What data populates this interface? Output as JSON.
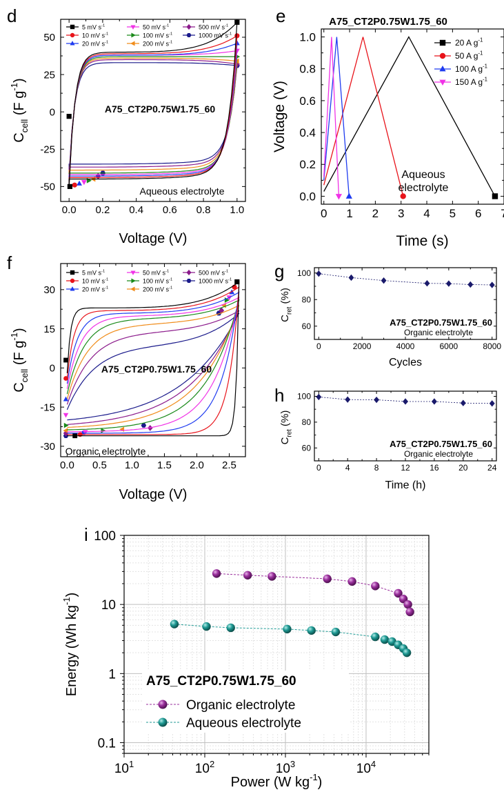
{
  "chart_data": [
    {
      "panel": "d",
      "type": "line",
      "subtype": "cyclic voltammetry",
      "title": "A75_CT2P0.75W1.75_60",
      "annotation": "Aqueous electrolyte",
      "xlabel": "Voltage (V)",
      "ylabel": "C_cell (F g^-1)",
      "xlim": [
        -0.05,
        1.05
      ],
      "ylim": [
        -60,
        62
      ],
      "xticks": [
        0.0,
        0.2,
        0.4,
        0.6,
        0.8,
        1.0
      ],
      "xtick_labels": [
        "0.0",
        "0.2",
        "0.4",
        "0.6",
        "0.8",
        "1.0"
      ],
      "yticks": [
        -50,
        -25,
        0,
        25,
        50
      ],
      "ytick_labels": [
        "-50",
        "-25",
        "0",
        "25",
        "50"
      ],
      "legend_position": "top, 3 columns",
      "series": [
        {
          "name": "5 mV s-1",
          "color": "#000000",
          "marker": "square",
          "upper_plateau": 40,
          "lower_plateau": -45,
          "end_max": 60,
          "start_min": -50
        },
        {
          "name": "10 mV s-1",
          "color": "#e8131a",
          "marker": "circle",
          "upper_plateau": 39,
          "lower_plateau": -44,
          "end_max": 51,
          "start_min": -49
        },
        {
          "name": "20 mV s-1",
          "color": "#1e3bf0",
          "marker": "triangle-up",
          "upper_plateau": 38,
          "lower_plateau": -43,
          "end_max": 46,
          "start_min": -48
        },
        {
          "name": "50 mV s-1",
          "color": "#f032e6",
          "marker": "triangle-down",
          "upper_plateau": 38,
          "lower_plateau": -42,
          "end_max": 41,
          "start_min": -47
        },
        {
          "name": "100 mV s-1",
          "color": "#1a8a1a",
          "marker": "triangle-right",
          "upper_plateau": 37,
          "lower_plateau": -41,
          "end_max": 37,
          "start_min": -46
        },
        {
          "name": "200 mV s-1",
          "color": "#f08c1a",
          "marker": "triangle-left",
          "upper_plateau": 36,
          "lower_plateau": -39,
          "end_max": 34,
          "start_min": -45
        },
        {
          "name": "500 mV s-1",
          "color": "#8b1a8b",
          "marker": "diamond",
          "upper_plateau": 35,
          "lower_plateau": -37,
          "end_max": 32,
          "start_min": -43
        },
        {
          "name": "1000 mV s-1",
          "color": "#1a1a8b",
          "marker": "hexagon",
          "upper_plateau": 33,
          "lower_plateau": -35,
          "end_max": 31,
          "start_min": -41
        }
      ]
    },
    {
      "panel": "e",
      "type": "line",
      "subtype": "galvanostatic charge-discharge",
      "title": "A75_CT2P0.75W1.75_60",
      "annotation": "Aqueous electrolyte",
      "xlabel": "Time (s)",
      "ylabel": "Voltage (V)",
      "xlim": [
        -0.1,
        7.0
      ],
      "ylim": [
        -0.05,
        1.05
      ],
      "xticks": [
        0,
        1,
        2,
        3,
        4,
        5,
        6,
        7
      ],
      "xtick_labels": [
        "0",
        "1",
        "2",
        "3",
        "4",
        "5",
        "6",
        "7"
      ],
      "yticks": [
        0.0,
        0.2,
        0.4,
        0.6,
        0.8,
        1.0
      ],
      "ytick_labels": [
        "0.0",
        "0.2",
        "0.4",
        "0.6",
        "0.8",
        "1.0"
      ],
      "legend_position": "top-right",
      "series": [
        {
          "name": "20 A g-1",
          "color": "#000000",
          "marker": "square",
          "points": [
            [
              0,
              0.03
            ],
            [
              3.3,
              1.0
            ],
            [
              6.65,
              0.0
            ]
          ]
        },
        {
          "name": "50 A g-1",
          "color": "#e8131a",
          "marker": "circle",
          "points": [
            [
              0,
              0.07
            ],
            [
              1.52,
              1.0
            ],
            [
              3.08,
              0.0
            ]
          ]
        },
        {
          "name": "100 A g-1",
          "color": "#1e3bf0",
          "marker": "triangle-up",
          "points": [
            [
              0,
              0.1
            ],
            [
              0.5,
              1.0
            ],
            [
              0.98,
              0.0
            ]
          ]
        },
        {
          "name": "150 A g-1",
          "color": "#f032e6",
          "marker": "triangle-down",
          "points": [
            [
              0,
              0.12
            ],
            [
              0.3,
              1.0
            ],
            [
              0.58,
              0.0
            ]
          ]
        }
      ]
    },
    {
      "panel": "f",
      "type": "line",
      "subtype": "cyclic voltammetry",
      "title": "A75_CT2P0.75W1.75_60",
      "annotation": "Organic electrolyte",
      "xlabel": "Voltage (V)",
      "ylabel": "C_cell (F g^-1)",
      "xlim": [
        -0.1,
        2.75
      ],
      "ylim": [
        -34,
        40
      ],
      "xticks": [
        0.0,
        0.5,
        1.0,
        1.5,
        2.0,
        2.5
      ],
      "xtick_labels": [
        "0.0",
        "0.5",
        "1.0",
        "1.5",
        "2.0",
        "2.5"
      ],
      "yticks": [
        -30,
        -15,
        0,
        15,
        30
      ],
      "ytick_labels": [
        "-30",
        "-15",
        "0",
        "15",
        "30"
      ],
      "legend_position": "top, 3 columns",
      "series": [
        {
          "name": "5 mV s-1",
          "color": "#000000",
          "marker": "square",
          "upper_plateau": 23,
          "lower_plateau": -26,
          "end_max": 33
        },
        {
          "name": "10 mV s-1",
          "color": "#e8131a",
          "marker": "circle",
          "upper_plateau": 22,
          "lower_plateau": -25.5,
          "end_max": 31
        },
        {
          "name": "20 mV s-1",
          "color": "#1e3bf0",
          "marker": "triangle-up",
          "upper_plateau": 21,
          "lower_plateau": -25,
          "end_max": 29
        },
        {
          "name": "50 mV s-1",
          "color": "#f032e6",
          "marker": "triangle-down",
          "upper_plateau": 20,
          "lower_plateau": -24.5,
          "end_max": 27
        },
        {
          "name": "100 mV s-1",
          "color": "#1a8a1a",
          "marker": "triangle-right",
          "upper_plateau": 19,
          "lower_plateau": -24,
          "end_max": 26
        },
        {
          "name": "200 mV s-1",
          "color": "#f08c1a",
          "marker": "triangle-left",
          "upper_plateau": 17,
          "lower_plateau": -23.5,
          "end_max": 24
        },
        {
          "name": "500 mV s-1",
          "color": "#8b1a8b",
          "marker": "diamond",
          "upper_plateau": 14,
          "lower_plateau": -23,
          "end_max": 22
        },
        {
          "name": "1000 mV s-1",
          "color": "#1a1a8b",
          "marker": "hexagon",
          "upper_plateau": 9,
          "lower_plateau": -22,
          "end_max": 21
        }
      ]
    },
    {
      "panel": "g",
      "type": "scatter",
      "title": "A75_CT2P0.75W1.75_60",
      "annotation": "Organic electrolyte",
      "xlabel": "Cycles",
      "ylabel": "C_ret (%)",
      "xlim": [
        -200,
        8200
      ],
      "ylim": [
        50,
        104
      ],
      "xticks": [
        0,
        2000,
        4000,
        6000,
        8000
      ],
      "xtick_labels": [
        "0",
        "2000",
        "4000",
        "6000",
        "8000"
      ],
      "yticks": [
        60,
        80,
        100
      ],
      "ytick_labels": [
        "60",
        "80",
        "100"
      ],
      "series": [
        {
          "name": "",
          "color": "#1a1a6b",
          "marker": "diamond",
          "x": [
            0,
            1500,
            3000,
            5000,
            6000,
            7000,
            8000
          ],
          "y": [
            99.5,
            96.5,
            94.3,
            92.2,
            92.0,
            91.3,
            91.0
          ]
        }
      ]
    },
    {
      "panel": "h",
      "type": "scatter",
      "title": "A75_CT2P0.75W1.75_60",
      "annotation": "Organic electrolyte",
      "xlabel": "Time (h)",
      "ylabel": "C_ret (%)",
      "xlim": [
        -0.6,
        24.6
      ],
      "ylim": [
        50,
        104
      ],
      "xticks": [
        0,
        4,
        8,
        12,
        16,
        20,
        24
      ],
      "xtick_labels": [
        "0",
        "4",
        "8",
        "12",
        "16",
        "20",
        "24"
      ],
      "yticks": [
        60,
        80,
        100
      ],
      "ytick_labels": [
        "60",
        "80",
        "100"
      ],
      "series": [
        {
          "name": "",
          "color": "#1a1a6b",
          "marker": "diamond",
          "x": [
            0,
            4,
            8,
            12,
            16,
            20,
            24
          ],
          "y": [
            99.5,
            97.5,
            97.3,
            96.0,
            96.0,
            94.8,
            94.5
          ]
        }
      ]
    },
    {
      "panel": "i",
      "type": "scatter",
      "subtype": "Ragone plot (log-log)",
      "title": "A75_CT2P0.75W1.75_60",
      "xlabel": "Power (W kg^-1)",
      "ylabel": "Energy (Wh kg^-1)",
      "xscale": "log",
      "yscale": "log",
      "xlim": [
        10,
        60000
      ],
      "ylim": [
        0.07,
        100
      ],
      "xticks": [
        10,
        100,
        1000,
        10000
      ],
      "xtick_labels": [
        "10^1",
        "10^2",
        "10^3",
        "10^4"
      ],
      "yticks": [
        0.1,
        1,
        10,
        100
      ],
      "ytick_labels": [
        "0.1",
        "1",
        "10",
        "100"
      ],
      "grid": true,
      "legend_position": "bottom-left",
      "series": [
        {
          "name": "Organic electrolyte",
          "color": "#9a2f9c",
          "marker": "sphere",
          "x": [
            140,
            340,
            680,
            3300,
            6700,
            13000,
            25000,
            29000,
            33000,
            35000
          ],
          "y": [
            28,
            26.5,
            25.5,
            23.5,
            21.5,
            18.5,
            14.5,
            12,
            10,
            7.8
          ]
        },
        {
          "name": "Aqueous electrolyte",
          "color": "#1f9a94",
          "marker": "sphere",
          "x": [
            42,
            105,
            210,
            1050,
            2100,
            4200,
            13000,
            17000,
            21000,
            25000,
            29000,
            32000
          ],
          "y": [
            5.2,
            4.8,
            4.6,
            4.4,
            4.2,
            4.0,
            3.4,
            3.1,
            2.9,
            2.6,
            2.3,
            2.0
          ]
        }
      ]
    }
  ],
  "panel_letters": [
    "d",
    "e",
    "f",
    "g",
    "h",
    "i"
  ]
}
